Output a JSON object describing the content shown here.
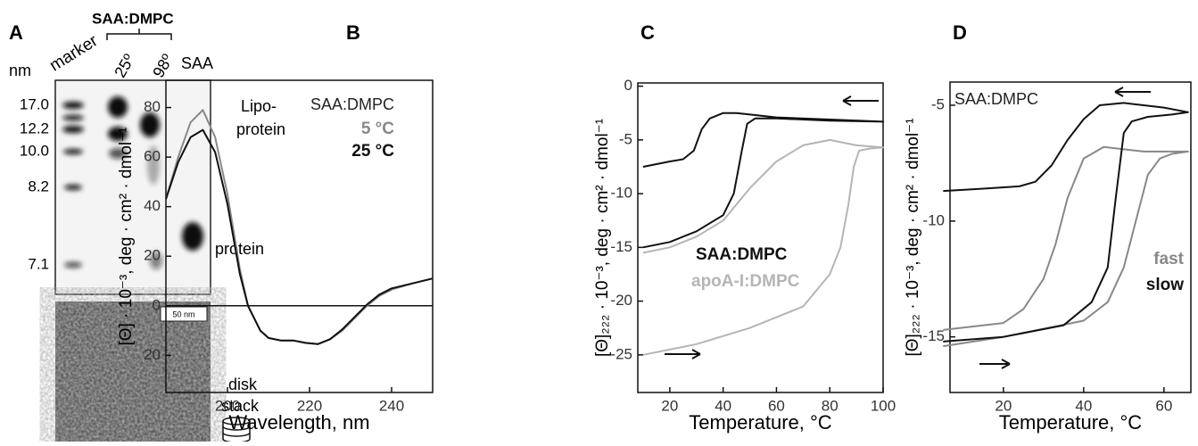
{
  "panel_a": {
    "letter": "A",
    "lane_labels": [
      "marker",
      "25º",
      "98º",
      "SAA"
    ],
    "group_label": "SAA:DMPC",
    "unit": "nm",
    "ladder": [
      "17.0",
      "12.2",
      "10.0",
      "8.2",
      "7.1"
    ],
    "band_labels": [
      "Lipo-",
      "protein",
      "protein"
    ],
    "scale_bar": "50 nm",
    "icon_labels": [
      "disk",
      "stack"
    ]
  },
  "chart_data": [
    {
      "type": "line",
      "title": "B",
      "xlabel": "Wavelength, nm",
      "ylabel": "[Θ] · 10⁻³, deg · cm² · dmol⁻¹",
      "annotation": "SAA:DMPC",
      "x": [
        185,
        188,
        191,
        194,
        197,
        200,
        203,
        205,
        208,
        210,
        213,
        216,
        219,
        222,
        225,
        228,
        231,
        234,
        237,
        240,
        245,
        250
      ],
      "series": [
        {
          "name": "5 °C",
          "color": "#888888",
          "values": [
            43,
            60,
            74,
            79,
            68,
            45,
            15,
            0,
            -10,
            -13,
            -14,
            -14,
            -15,
            -15.5,
            -13.5,
            -10,
            -5,
            0,
            4,
            6.5,
            9,
            11
          ]
        },
        {
          "name": "25 °C",
          "color": "#111111",
          "values": [
            43,
            58,
            68,
            71,
            62,
            41,
            13,
            0,
            -10,
            -13,
            -14,
            -14,
            -15,
            -15.5,
            -13.5,
            -9.5,
            -4.5,
            0.5,
            4.5,
            7,
            9,
            11
          ]
        }
      ],
      "xlim": [
        185,
        250
      ],
      "xticks": [
        200,
        220,
        240
      ],
      "ylim": [
        -35,
        91
      ],
      "yticks": [
        {
          "value": -20,
          "label": "20"
        },
        0,
        20,
        40,
        60,
        80
      ],
      "zero_line": true
    },
    {
      "type": "line",
      "title": "C",
      "xlabel": "Temperature, °C",
      "ylabel": "[Θ]₂₂₂ · 10⁻³, deg · cm² · dmol⁻¹",
      "series": [
        {
          "name": "SAA:DMPC",
          "color": "#111111",
          "x": [
            10,
            20,
            30,
            40,
            44,
            47,
            49,
            52,
            60,
            80,
            100,
            80,
            60,
            45,
            40,
            35,
            32,
            29,
            25,
            20,
            10
          ],
          "values": [
            -15,
            -14.5,
            -13.5,
            -12,
            -10,
            -6,
            -3.5,
            -3,
            -3,
            -3.2,
            -3.3,
            -3.1,
            -2.9,
            -2.5,
            -2.5,
            -3,
            -4,
            -6,
            -6.8,
            -7,
            -7.5
          ]
        },
        {
          "name": "apoA-I:DMPC",
          "color": "#b5b5b5",
          "x": [
            10,
            30,
            50,
            70,
            80,
            84,
            87,
            89,
            91,
            95,
            100,
            90,
            80,
            70,
            60,
            50,
            40,
            30,
            20,
            10
          ],
          "values": [
            -25,
            -24,
            -22.5,
            -20.5,
            -17.5,
            -15,
            -11,
            -7.5,
            -6,
            -5.8,
            -5.7,
            -5.5,
            -5,
            -5.5,
            -7,
            -9.5,
            -12.5,
            -14,
            -15,
            -15.5
          ]
        }
      ],
      "xlim": [
        8,
        100
      ],
      "xticks": [
        20,
        40,
        60,
        80,
        100
      ],
      "ylim": [
        -28.5,
        0.3
      ],
      "yticks": [
        -25,
        -20,
        -15,
        -10,
        -5,
        0
      ]
    },
    {
      "type": "line",
      "title": "D",
      "xlabel": "Temperature, °C",
      "ylabel": "[Θ]₂₂₂ · 10⁻³, deg · cm² · dmol⁻¹",
      "annotation": "SAA:DMPC",
      "series": [
        {
          "name": "fast",
          "color": "#888888",
          "x": [
            5,
            20,
            40,
            46,
            50,
            53,
            56,
            59,
            62,
            66,
            55,
            45,
            40,
            36,
            33,
            30,
            25,
            20,
            5
          ],
          "values": [
            -15.4,
            -15,
            -14.3,
            -13.5,
            -12,
            -10,
            -8,
            -7.3,
            -7.1,
            -7,
            -7,
            -6.8,
            -7.3,
            -9,
            -11,
            -12.5,
            -13.8,
            -14.4,
            -14.7
          ]
        },
        {
          "name": "slow",
          "color": "#111111",
          "x": [
            5,
            20,
            35,
            42,
            46,
            48,
            50,
            52,
            56,
            62,
            66,
            60,
            50,
            44,
            40,
            36,
            32,
            28,
            24,
            15,
            5
          ],
          "values": [
            -15.2,
            -15,
            -14.5,
            -13.5,
            -12,
            -9,
            -6.2,
            -5.7,
            -5.5,
            -5.4,
            -5.3,
            -5.1,
            -4.9,
            -5,
            -5.6,
            -6.5,
            -7.6,
            -8.3,
            -8.5,
            -8.6,
            -8.7
          ]
        }
      ],
      "xlim": [
        6.7,
        66.7
      ],
      "xticks": [
        20,
        40,
        60
      ],
      "ylim": [
        -17.4,
        -4
      ],
      "yticks": [
        -15,
        -10,
        -5
      ]
    }
  ]
}
